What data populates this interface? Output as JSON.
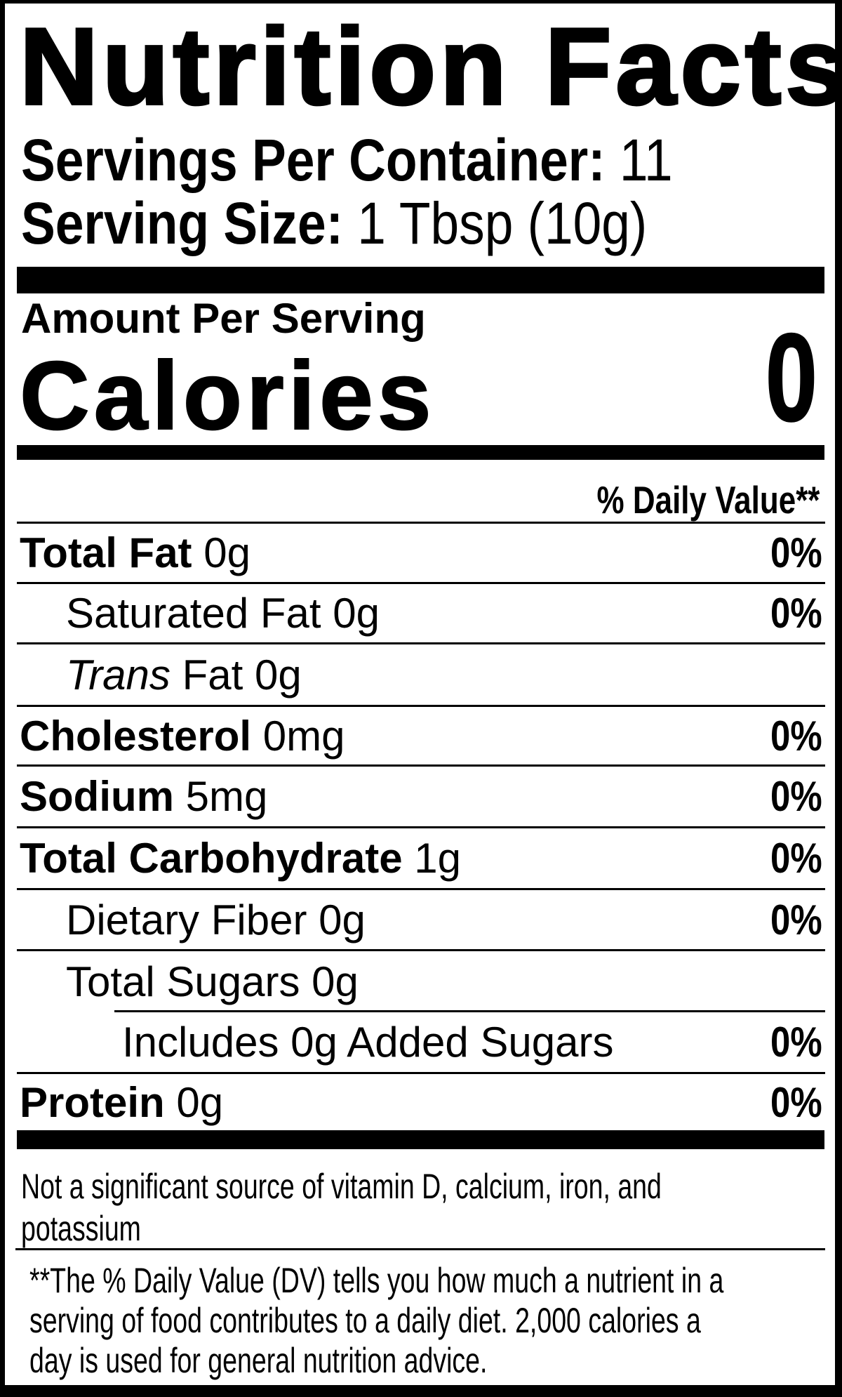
{
  "colors": {
    "ink": "#000000",
    "paper": "#ffffff"
  },
  "header": {
    "title": "Nutrition Facts",
    "servings_per_container_label": "Servings Per Container:",
    "servings_per_container_value": " 11",
    "serving_size_label": "Serving Size:",
    "serving_size_value": " 1 Tbsp (10g)"
  },
  "calories": {
    "amount_per_serving": "Amount Per Serving",
    "label": "Calories",
    "value": "0"
  },
  "table": {
    "daily_value_header": "% Daily Value**",
    "rows": [
      {
        "bold": "Total Fat",
        "rest": " 0g",
        "dv": "0%"
      },
      {
        "rest": "Saturated Fat 0g",
        "dv": "0%"
      },
      {
        "italic": "Trans",
        "rest": " Fat 0g"
      },
      {
        "bold": "Cholesterol",
        "rest": " 0mg",
        "dv": "0%"
      },
      {
        "bold": "Sodium",
        "rest": " 5mg",
        "dv": "0%"
      },
      {
        "bold": "Total Carbohydrate",
        "rest": " 1g",
        "dv": "0%"
      },
      {
        "rest": "Dietary Fiber 0g",
        "dv": "0%"
      },
      {
        "rest": "Total Sugars 0g"
      },
      {
        "rest": "Includes 0g Added Sugars",
        "dv": "0%"
      },
      {
        "bold": "Protein",
        "rest": " 0g",
        "dv": "0%"
      }
    ]
  },
  "footer": {
    "not_significant_lines": [
      "Not a significant source of vitamin D, calcium, iron, and",
      "potassium"
    ],
    "footnote_lines": [
      "**The % Daily Value (DV) tells you how much a nutrient in a",
      "serving of food contributes to a daily diet. 2,000 calories a",
      "day is used for general nutrition advice."
    ]
  }
}
